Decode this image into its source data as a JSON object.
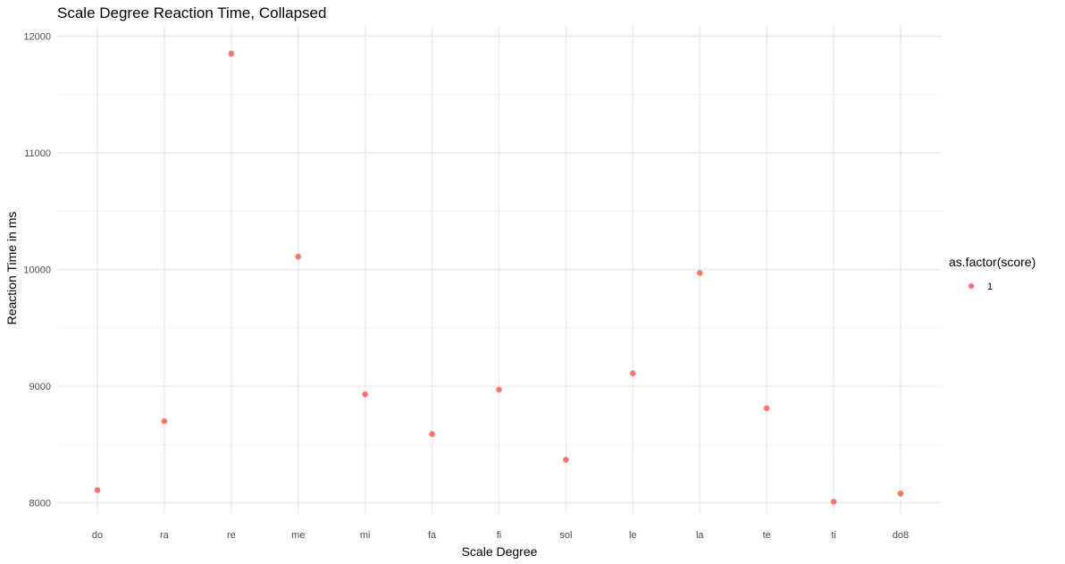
{
  "chart_data": {
    "type": "scatter",
    "title": "Scale Degree Reaction Time, Collapsed",
    "xlabel": "Scale Degree",
    "ylabel": "Reaction Time in ms",
    "categories": [
      "do",
      "ra",
      "re",
      "me",
      "mi",
      "fa",
      "fi",
      "sol",
      "le",
      "la",
      "te",
      "ti",
      "do8"
    ],
    "series": [
      {
        "name": "1",
        "color": "#F8766D",
        "values": [
          8110,
          8700,
          11850,
          10110,
          8930,
          8590,
          8970,
          8370,
          9110,
          9970,
          8810,
          8010,
          8080
        ]
      }
    ],
    "yticks": [
      8000,
      9000,
      10000,
      11000,
      12000
    ],
    "ylim": [
      7905,
      12095
    ],
    "grid": true,
    "legend": {
      "title": "as.factor(score)",
      "position": "right"
    }
  }
}
